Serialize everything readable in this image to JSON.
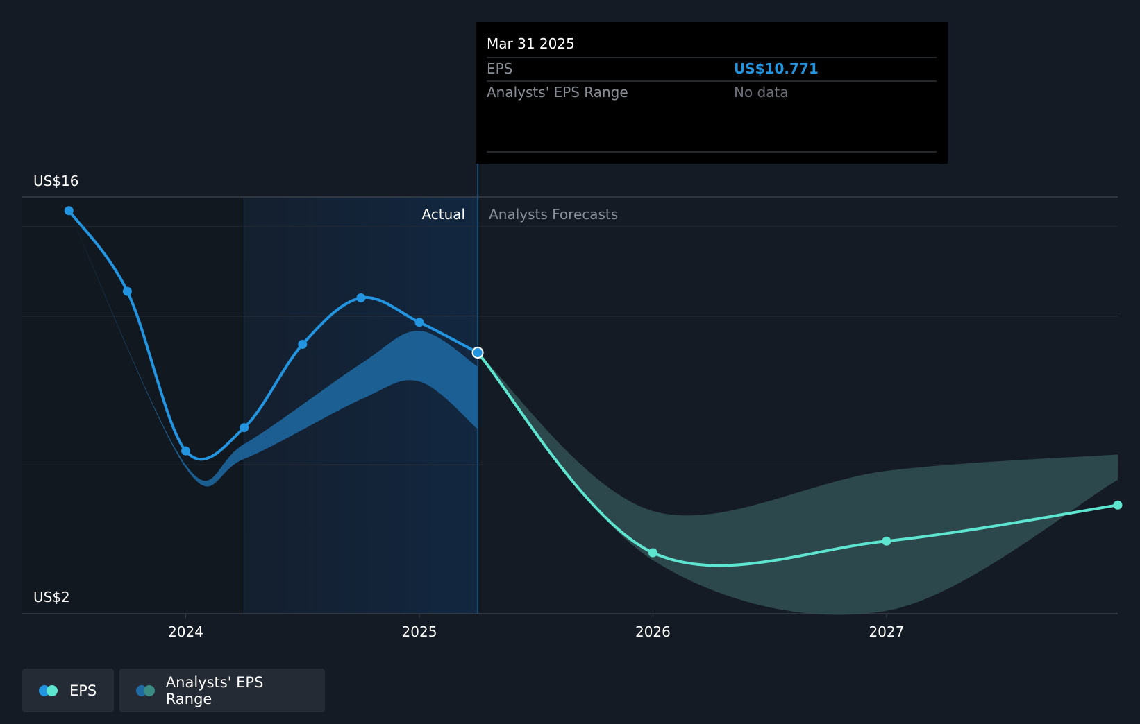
{
  "chart_data": {
    "type": "line",
    "y_axis": {
      "min_label": "US$2",
      "max_label": "US$16",
      "range": [
        2,
        16
      ],
      "gridlines": [
        2,
        7,
        12,
        16
      ]
    },
    "x_axis": {
      "ticks": [
        "2024",
        "2025",
        "2026",
        "2027"
      ],
      "range": [
        2023.3,
        2027.99
      ]
    },
    "sections": {
      "actual_label": "Actual",
      "forecast_label": "Analysts Forecasts"
    },
    "series": [
      {
        "name": "EPS",
        "role": "actual",
        "points": [
          {
            "x": 2023.5,
            "y": 15.54
          },
          {
            "x": 2023.75,
            "y": 12.83
          },
          {
            "x": 2024.0,
            "y": 7.47
          },
          {
            "x": 2024.25,
            "y": 8.25
          },
          {
            "x": 2024.5,
            "y": 11.05
          },
          {
            "x": 2024.75,
            "y": 12.61
          },
          {
            "x": 2025.0,
            "y": 11.79
          },
          {
            "x": 2025.25,
            "y": 10.77
          }
        ]
      },
      {
        "name": "EPS",
        "role": "forecast",
        "points": [
          {
            "x": 2025.25,
            "y": 10.77
          },
          {
            "x": 2026.0,
            "y": 4.05
          },
          {
            "x": 2027.0,
            "y": 4.44
          },
          {
            "x": 2027.99,
            "y": 5.65
          }
        ]
      }
    ],
    "range_bands": [
      {
        "name": "Analysts' EPS Range",
        "role": "actual",
        "upper": [
          {
            "x": 2023.5,
            "y": 15.54
          },
          {
            "x": 2024.0,
            "y": 7.0
          },
          {
            "x": 2024.25,
            "y": 7.7
          },
          {
            "x": 2024.75,
            "y": 10.4
          },
          {
            "x": 2025.0,
            "y": 11.5
          },
          {
            "x": 2025.25,
            "y": 10.3
          }
        ],
        "lower": [
          {
            "x": 2025.25,
            "y": 8.2
          },
          {
            "x": 2025.0,
            "y": 9.8
          },
          {
            "x": 2024.75,
            "y": 9.2
          },
          {
            "x": 2024.25,
            "y": 7.2
          },
          {
            "x": 2024.0,
            "y": 6.9
          },
          {
            "x": 2023.5,
            "y": 15.54
          }
        ]
      },
      {
        "name": "Analysts' EPS Range",
        "role": "forecast",
        "upper": [
          {
            "x": 2025.25,
            "y": 10.77
          },
          {
            "x": 2026.0,
            "y": 5.45
          },
          {
            "x": 2027.0,
            "y": 6.8
          },
          {
            "x": 2027.99,
            "y": 7.35
          }
        ],
        "lower": [
          {
            "x": 2027.99,
            "y": 6.5
          },
          {
            "x": 2027.0,
            "y": 2.1
          },
          {
            "x": 2026.0,
            "y": 3.8
          },
          {
            "x": 2025.25,
            "y": 10.77
          }
        ]
      }
    ],
    "highlight_range": [
      2024.25,
      2025.25
    ],
    "tooltip": {
      "date": "Mar 31 2025",
      "rows": [
        {
          "label": "EPS",
          "value": "US$10.771"
        },
        {
          "label": "Analysts' EPS Range",
          "value": "No data"
        }
      ]
    },
    "legend": [
      {
        "label": "EPS"
      },
      {
        "label": "Analysts' EPS Range"
      }
    ]
  },
  "colors": {
    "background": "#151b24",
    "actual_line": "#2394df",
    "forecast_line": "#5de5cf",
    "actual_band": "#1f6aa3",
    "forecast_band": "#2e4b4f",
    "highlight": "#122740",
    "past_shade": "#121820",
    "grid": "#3a414b",
    "axis_text": "#ffffff",
    "muted_text": "#8a9098",
    "tooltip_bg": "#000000",
    "legend_bg": "#252b35"
  }
}
